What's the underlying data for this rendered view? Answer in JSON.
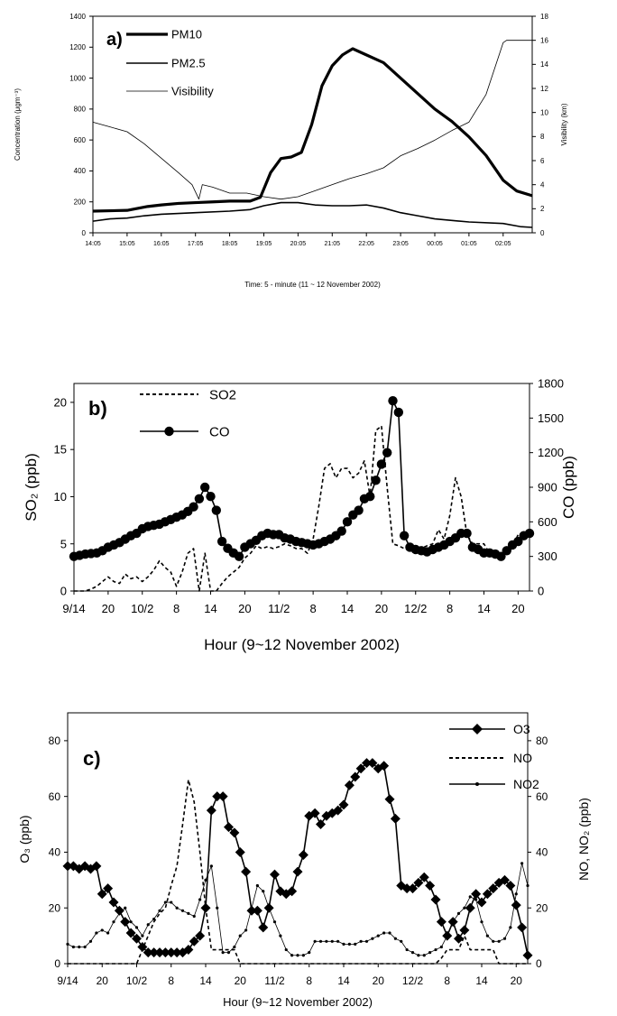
{
  "chart_data": [
    {
      "type": "line",
      "panel_label": "a)",
      "xlabel": "Time: 5 - minute (11 ~ 12 November 2002)",
      "ylabel": "Concentration (μgm⁻³)",
      "y2label": "Visibility (km)",
      "x_ticks": [
        "14:05",
        "15:05",
        "16:05",
        "17:05",
        "18:05",
        "19:05",
        "20:05",
        "21:05",
        "22:05",
        "23:05",
        "00:05",
        "01:05",
        "02:05"
      ],
      "xlim": [
        0,
        12.85
      ],
      "ylim": [
        0,
        1400
      ],
      "y_ticks": [
        0,
        200,
        400,
        600,
        800,
        1000,
        1200,
        1400
      ],
      "y2lim": [
        0,
        18
      ],
      "y2_ticks": [
        0,
        2,
        4,
        6,
        8,
        10,
        12,
        14,
        16,
        18
      ],
      "legend": [
        {
          "name": "PM10",
          "style": "thick"
        },
        {
          "name": "PM2.5",
          "style": "medium"
        },
        {
          "name": "Visibility",
          "style": "thin"
        }
      ],
      "series": [
        {
          "name": "PM10",
          "axis": "left",
          "points": [
            [
              0,
              140
            ],
            [
              1,
              145
            ],
            [
              1.6,
              170
            ],
            [
              2,
              180
            ],
            [
              2.5,
              190
            ],
            [
              3,
              195
            ],
            [
              3.5,
              200
            ],
            [
              4,
              205
            ],
            [
              4.6,
              205
            ],
            [
              4.9,
              230
            ],
            [
              5.2,
              390
            ],
            [
              5.5,
              480
            ],
            [
              5.8,
              490
            ],
            [
              6.1,
              520
            ],
            [
              6.4,
              700
            ],
            [
              6.7,
              950
            ],
            [
              7,
              1080
            ],
            [
              7.3,
              1150
            ],
            [
              7.6,
              1190
            ],
            [
              8,
              1150
            ],
            [
              8.5,
              1100
            ],
            [
              9,
              1000
            ],
            [
              9.5,
              900
            ],
            [
              10,
              800
            ],
            [
              10.5,
              720
            ],
            [
              11,
              620
            ],
            [
              11.5,
              500
            ],
            [
              12,
              340
            ],
            [
              12.4,
              270
            ],
            [
              12.85,
              240
            ]
          ]
        },
        {
          "name": "PM2.5",
          "axis": "left",
          "points": [
            [
              0,
              75
            ],
            [
              0.5,
              90
            ],
            [
              1,
              95
            ],
            [
              1.5,
              110
            ],
            [
              2,
              120
            ],
            [
              3,
              130
            ],
            [
              4,
              140
            ],
            [
              4.6,
              150
            ],
            [
              5,
              175
            ],
            [
              5.5,
              195
            ],
            [
              6,
              195
            ],
            [
              6.5,
              180
            ],
            [
              7,
              175
            ],
            [
              7.5,
              175
            ],
            [
              8,
              180
            ],
            [
              8.5,
              160
            ],
            [
              9,
              130
            ],
            [
              9.5,
              110
            ],
            [
              10,
              90
            ],
            [
              11,
              70
            ],
            [
              12,
              60
            ],
            [
              12.5,
              40
            ],
            [
              12.85,
              35
            ]
          ]
        },
        {
          "name": "Visibility",
          "axis": "right",
          "points": [
            [
              0,
              9.2
            ],
            [
              0.5,
              8.8
            ],
            [
              1,
              8.4
            ],
            [
              1.5,
              7.4
            ],
            [
              2,
              6.2
            ],
            [
              2.5,
              5.0
            ],
            [
              2.9,
              4.0
            ],
            [
              3.1,
              2.8
            ],
            [
              3.2,
              4.0
            ],
            [
              3.5,
              3.8
            ],
            [
              4,
              3.3
            ],
            [
              4.5,
              3.3
            ],
            [
              5,
              3.0
            ],
            [
              5.5,
              2.8
            ],
            [
              6,
              3.0
            ],
            [
              6.5,
              3.5
            ],
            [
              7,
              4.0
            ],
            [
              7.5,
              4.5
            ],
            [
              8,
              4.9
            ],
            [
              8.5,
              5.4
            ],
            [
              9,
              6.4
            ],
            [
              9.5,
              7.0
            ],
            [
              10,
              7.7
            ],
            [
              10.5,
              8.5
            ],
            [
              11,
              9.2
            ],
            [
              11.5,
              11.5
            ],
            [
              12,
              15.8
            ],
            [
              12.1,
              16
            ],
            [
              12.85,
              16
            ]
          ]
        }
      ]
    },
    {
      "type": "line",
      "panel_label": "b)",
      "xlabel": "Hour (9~12 November 2002)",
      "ylabel": "SO₂ (ppb)",
      "y2label": "CO (ppb)",
      "x_ticks": [
        "9/14",
        "20",
        "10/2",
        "8",
        "14",
        "20",
        "11/2",
        "8",
        "14",
        "20",
        "12/2",
        "8",
        "14",
        "20"
      ],
      "xlim": [
        0,
        80
      ],
      "ylim": [
        0,
        22
      ],
      "y_ticks": [
        0,
        5,
        10,
        15,
        20
      ],
      "y2lim": [
        0,
        1800
      ],
      "y2_ticks": [
        0,
        300,
        600,
        900,
        1200,
        1500,
        1800
      ],
      "legend": [
        {
          "name": "SO2",
          "style": "dashed"
        },
        {
          "name": "CO",
          "style": "line-circle"
        }
      ],
      "series": [
        {
          "name": "SO2",
          "axis": "left",
          "values": [
            0,
            0,
            0,
            0.2,
            0.5,
            1,
            1.5,
            1,
            0.8,
            1.8,
            1.3,
            1.5,
            1,
            1.5,
            2.2,
            3.2,
            2.5,
            2,
            0.5,
            2,
            4,
            4.5,
            0,
            4,
            0,
            0,
            0.8,
            1.5,
            2,
            2.5,
            3.5,
            4,
            4.8,
            4.5,
            4.7,
            4.5,
            4.7,
            5,
            4.8,
            4.5,
            4.5,
            4,
            5.5,
            9,
            13,
            13.5,
            12,
            13,
            13,
            12,
            12.5,
            13.8,
            10,
            17,
            17.5,
            11,
            5,
            4.8,
            4.5,
            4.3,
            4.3,
            4.5,
            4.8,
            5,
            6.5,
            5.5,
            8,
            12,
            10,
            6,
            5,
            5,
            5,
            4,
            3.5,
            4,
            4.2,
            4.5,
            6,
            6
          ]
        },
        {
          "name": "CO",
          "axis": "right",
          "values": [
            300,
            310,
            320,
            325,
            330,
            350,
            380,
            400,
            420,
            450,
            480,
            500,
            540,
            560,
            570,
            580,
            600,
            620,
            640,
            660,
            690,
            730,
            800,
            900,
            820,
            700,
            430,
            370,
            330,
            300,
            380,
            410,
            440,
            480,
            500,
            490,
            490,
            460,
            450,
            430,
            420,
            410,
            400,
            410,
            430,
            450,
            480,
            520,
            600,
            660,
            700,
            800,
            820,
            960,
            1100,
            1200,
            1650,
            1550,
            480,
            380,
            360,
            350,
            340,
            360,
            380,
            400,
            430,
            460,
            500,
            500,
            380,
            360,
            330,
            330,
            320,
            300,
            350,
            400,
            430,
            480,
            500
          ]
        }
      ]
    },
    {
      "type": "line",
      "panel_label": "c)",
      "xlabel": "Hour (9~12 November 2002)",
      "ylabel": "O₃ (ppb)",
      "y2label": "NO, NO₂ (ppb)",
      "x_ticks": [
        "9/14",
        "20",
        "10/2",
        "8",
        "14",
        "20",
        "11/2",
        "8",
        "14",
        "20",
        "12/2",
        "8",
        "14",
        "20"
      ],
      "xlim": [
        0,
        80
      ],
      "ylim": [
        0,
        90
      ],
      "y_ticks": [
        0,
        20,
        40,
        60,
        80
      ],
      "y2lim": [
        0,
        90
      ],
      "y2_ticks": [
        0,
        20,
        40,
        60,
        80
      ],
      "legend": [
        {
          "name": "O3",
          "style": "line-diamond"
        },
        {
          "name": "NO",
          "style": "dashed"
        },
        {
          "name": "NO2",
          "style": "line-dot"
        }
      ],
      "series": [
        {
          "name": "O3",
          "axis": "left",
          "values": [
            35,
            35,
            34,
            35,
            34,
            35,
            25,
            27,
            22,
            19,
            15,
            11,
            9,
            6,
            4,
            4,
            4,
            4,
            4,
            4,
            4,
            5,
            8,
            10,
            20,
            55,
            60,
            60,
            49,
            47,
            40,
            33,
            19,
            19,
            13,
            20,
            32,
            26,
            25,
            26,
            33,
            39,
            53,
            54,
            50,
            53,
            54,
            55,
            57,
            64,
            67,
            70,
            72,
            72,
            70,
            71,
            59,
            52,
            28,
            27,
            27,
            29,
            31,
            28,
            23,
            15,
            10,
            15,
            9,
            12,
            20,
            25,
            22,
            25,
            27,
            29,
            30,
            28,
            21,
            13,
            3
          ]
        },
        {
          "name": "NO",
          "axis": "right",
          "values": [
            0,
            0,
            0,
            0,
            0,
            0,
            0,
            0,
            0,
            0,
            0,
            0,
            0,
            5,
            10,
            15,
            18,
            20,
            28,
            35,
            50,
            66,
            58,
            40,
            20,
            5,
            5,
            5,
            5,
            5,
            0,
            0,
            0,
            0,
            0,
            0,
            0,
            0,
            0,
            0,
            0,
            0,
            0,
            0,
            0,
            0,
            0,
            0,
            0,
            0,
            0,
            0,
            0,
            0,
            0,
            0,
            0,
            0,
            0,
            0,
            0,
            0,
            0,
            0,
            0,
            2,
            5,
            5,
            5,
            10,
            5,
            5,
            5,
            5,
            5,
            0,
            0,
            0,
            0,
            0,
            0
          ]
        },
        {
          "name": "NO2",
          "axis": "right",
          "values": [
            7,
            6,
            6,
            6,
            8,
            11,
            12,
            11,
            15,
            18,
            20,
            15,
            13,
            10,
            14,
            16,
            19,
            22,
            22,
            20,
            19,
            18,
            17,
            23,
            30,
            35,
            20,
            4,
            4,
            6,
            10,
            12,
            20,
            28,
            26,
            20,
            15,
            10,
            5,
            3,
            3,
            3,
            4,
            8,
            8,
            8,
            8,
            8,
            7,
            7,
            7,
            8,
            8,
            9,
            10,
            11,
            11,
            9,
            8,
            5,
            4,
            3,
            3,
            4,
            5,
            6,
            10,
            15,
            18,
            20,
            24,
            23,
            15,
            10,
            8,
            8,
            9,
            13,
            25,
            36,
            28
          ]
        }
      ]
    }
  ]
}
